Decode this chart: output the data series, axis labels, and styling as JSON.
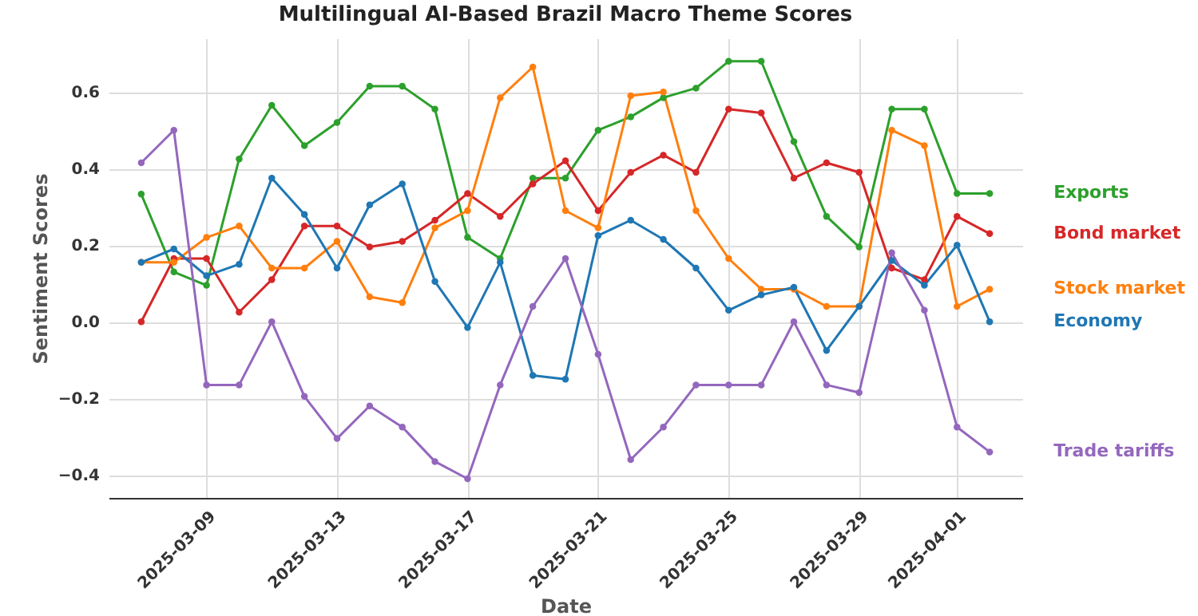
{
  "chart_data": {
    "type": "line",
    "title": "Multilingual AI-Based Brazil Macro Theme Scores",
    "xlabel": "Date",
    "ylabel": "Sentiment Scores",
    "x": [
      "2025-03-07",
      "2025-03-08",
      "2025-03-09",
      "2025-03-10",
      "2025-03-11",
      "2025-03-12",
      "2025-03-13",
      "2025-03-14",
      "2025-03-15",
      "2025-03-16",
      "2025-03-17",
      "2025-03-18",
      "2025-03-19",
      "2025-03-20",
      "2025-03-21",
      "2025-03-22",
      "2025-03-23",
      "2025-03-24",
      "2025-03-25",
      "2025-03-26",
      "2025-03-27",
      "2025-03-28",
      "2025-03-29",
      "2025-03-30",
      "2025-03-31",
      "2025-04-01",
      "2025-04-02"
    ],
    "series": [
      {
        "name": "Exports",
        "color": "#2ca02c",
        "values": [
          0.333,
          0.13,
          0.095,
          0.425,
          0.565,
          0.46,
          0.52,
          0.615,
          0.615,
          0.555,
          0.22,
          0.165,
          0.375,
          0.375,
          0.5,
          0.535,
          0.585,
          0.61,
          0.68,
          0.68,
          0.47,
          0.275,
          0.195,
          0.555,
          0.555,
          0.335,
          0.335
        ]
      },
      {
        "name": "Bond market",
        "color": "#d62728",
        "values": [
          0.0,
          0.165,
          0.165,
          0.025,
          0.11,
          0.25,
          0.25,
          0.195,
          0.21,
          0.265,
          0.335,
          0.275,
          0.36,
          0.42,
          0.29,
          0.39,
          0.435,
          0.39,
          0.555,
          0.545,
          0.375,
          0.415,
          0.39,
          0.14,
          0.11,
          0.275,
          0.23
        ]
      },
      {
        "name": "Stock market",
        "color": "#ff7f0e",
        "values": [
          0.155,
          0.155,
          0.22,
          0.25,
          0.14,
          0.14,
          0.21,
          0.065,
          0.05,
          0.245,
          0.29,
          0.585,
          0.665,
          0.29,
          0.245,
          0.59,
          0.6,
          0.29,
          0.165,
          0.085,
          0.085,
          0.04,
          0.04,
          0.5,
          0.46,
          0.04,
          0.085
        ]
      },
      {
        "name": "Economy",
        "color": "#1f77b4",
        "values": [
          0.155,
          0.19,
          0.12,
          0.15,
          0.375,
          0.28,
          0.14,
          0.305,
          0.36,
          0.105,
          -0.015,
          0.155,
          -0.14,
          -0.15,
          0.225,
          0.265,
          0.215,
          0.14,
          0.03,
          0.07,
          0.09,
          -0.075,
          0.04,
          0.16,
          0.095,
          0.2,
          0.0
        ]
      },
      {
        "name": "Trade tariffs",
        "color": "#9467bd",
        "values": [
          0.415,
          0.5,
          -0.165,
          -0.165,
          0.0,
          -0.195,
          -0.305,
          -0.22,
          -0.275,
          -0.365,
          -0.41,
          -0.165,
          0.04,
          0.165,
          -0.085,
          -0.36,
          -0.275,
          -0.165,
          -0.165,
          -0.165,
          0.0,
          -0.165,
          -0.185,
          0.18,
          0.03,
          -0.275,
          -0.34
        ]
      }
    ],
    "xlim": [
      "2025-03-06",
      "2025-04-03"
    ],
    "ylim": [
      -0.46,
      0.74
    ],
    "xticks": [
      "2025-03-09",
      "2025-03-13",
      "2025-03-17",
      "2025-03-21",
      "2025-03-25",
      "2025-03-29",
      "2025-04-01"
    ],
    "yticks": [
      {
        "value": -0.4,
        "label": "−0.4"
      },
      {
        "value": -0.2,
        "label": "−0.2"
      },
      {
        "value": 0,
        "label": "0.0"
      },
      0.2,
      0.4,
      0.6
    ],
    "grid": true,
    "marker": "circle",
    "line_style": "solid"
  }
}
